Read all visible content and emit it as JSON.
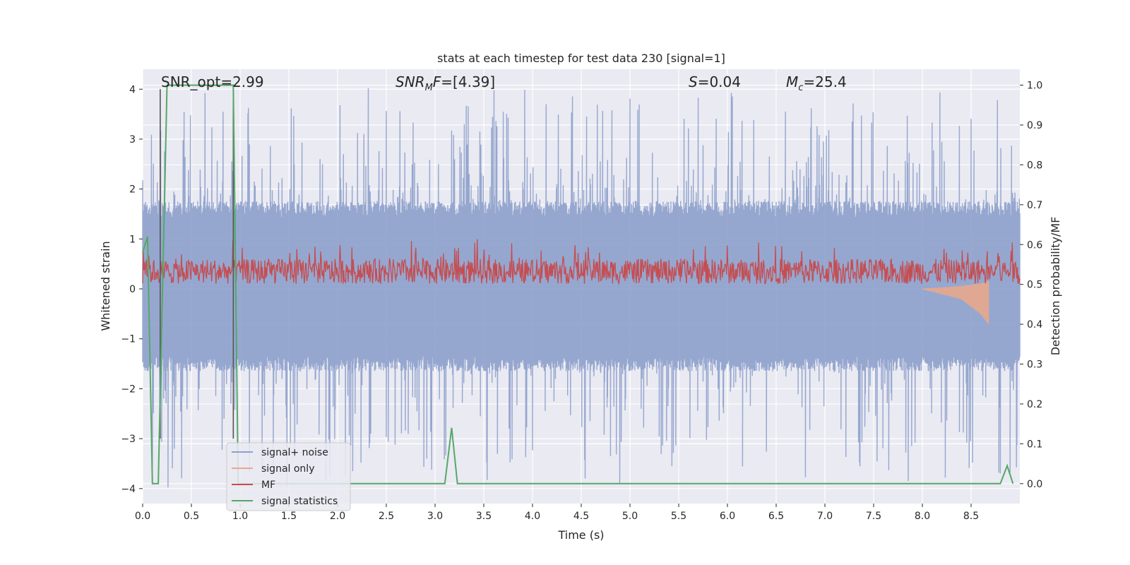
{
  "chart_data": {
    "type": "line",
    "title": "stats at each timestep for test data 230 [signal=1]",
    "xlabel": "Time (s)",
    "ylabel": "Whitened strain",
    "y2label": "Detection probability/MF",
    "xlim": [
      0.0,
      9.0
    ],
    "ylim": [
      -4.3,
      4.4
    ],
    "y2lim": [
      -0.05,
      1.04
    ],
    "x_ticks": [
      "0.0",
      "0.5",
      "1.0",
      "1.5",
      "2.0",
      "2.5",
      "3.0",
      "3.5",
      "4.0",
      "4.5",
      "5.0",
      "5.5",
      "6.0",
      "6.5",
      "7.0",
      "7.5",
      "8.0",
      "8.5"
    ],
    "y_ticks": [
      "−4",
      "−3",
      "−2",
      "−1",
      "0",
      "1",
      "2",
      "3",
      "4"
    ],
    "y2_ticks": [
      "0.0",
      "0.1",
      "0.2",
      "0.3",
      "0.4",
      "0.5",
      "0.6",
      "0.7",
      "0.8",
      "0.9",
      "1.0"
    ],
    "grid": true,
    "legend_position": "lower-left",
    "annotations": [
      {
        "text": "SNR_opt=2.99"
      },
      {
        "text": "SNR_MF=[4.39]",
        "pre": "SNR",
        "sub": "M",
        "post": "F=[4.39]"
      },
      {
        "text": "S=0.04",
        "pre": "S",
        "post": "=0.04"
      },
      {
        "text": "M_c=25.4",
        "pre": "M",
        "sub": "c",
        "post": "=25.4"
      }
    ],
    "vlines_x": [
      0.18,
      0.93
    ],
    "series": [
      {
        "name": "signal+ noise",
        "color": "#8da0cb",
        "axis": "left",
        "envelope": {
          "upper": 1.6,
          "lower": -1.5,
          "peak_max": 4.0,
          "peak_min": -3.9
        }
      },
      {
        "name": "signal only",
        "color": "#e8a98c",
        "axis": "left",
        "x": [
          8.0,
          8.2,
          8.4,
          8.6,
          8.68
        ],
        "upper": [
          0.0,
          0.02,
          0.05,
          0.1,
          0.15
        ],
        "lower": [
          0.0,
          -0.1,
          -0.2,
          -0.5,
          -0.7
        ]
      },
      {
        "name": "MF",
        "color": "#c44e52",
        "axis": "left",
        "band": [
          0.1,
          0.6
        ],
        "peak_max": 1.0
      },
      {
        "name": "signal statistics",
        "color": "#55a868",
        "axis": "right",
        "x": [
          0.0,
          0.05,
          0.1,
          0.16,
          0.25,
          0.93,
          0.98,
          1.0,
          1.1,
          3.1,
          3.17,
          3.23,
          8.8,
          8.87,
          8.93
        ],
        "values": [
          0.58,
          0.62,
          0.0,
          0.0,
          1.0,
          1.0,
          0.0,
          0.0,
          0.0,
          0.0,
          0.14,
          0.0,
          0.0,
          0.045,
          0.0
        ]
      }
    ]
  }
}
